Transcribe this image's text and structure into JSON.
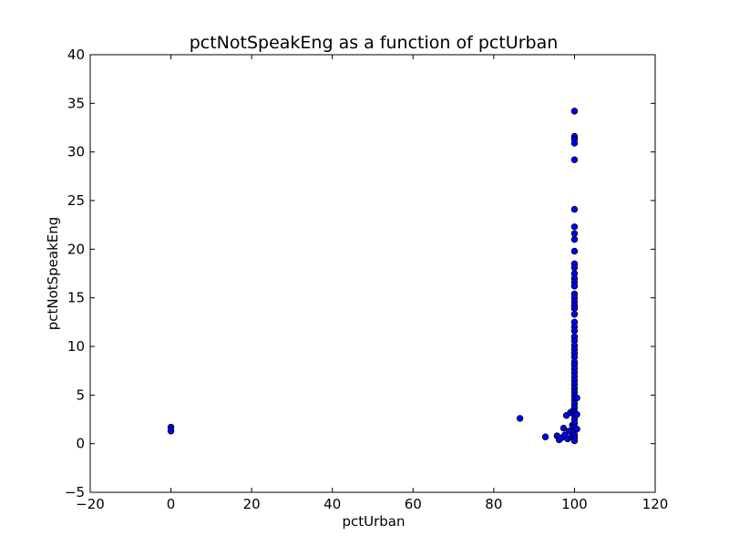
{
  "chart_data": {
    "type": "scatter",
    "title": "pctNotSpeakEng as a function of pctUrban",
    "xlabel": "pctUrban",
    "ylabel": "pctNotSpeakEng",
    "xlim": [
      -20,
      120
    ],
    "ylim": [
      -5,
      40
    ],
    "xticks": [
      -20,
      0,
      20,
      40,
      60,
      80,
      100,
      120
    ],
    "yticks": [
      -5,
      0,
      5,
      10,
      15,
      20,
      25,
      30,
      35,
      40
    ],
    "xtick_labels": [
      "−20",
      "0",
      "20",
      "40",
      "60",
      "80",
      "100",
      "120"
    ],
    "ytick_labels": [
      "−5",
      "0",
      "5",
      "10",
      "15",
      "20",
      "25",
      "30",
      "35",
      "40"
    ],
    "grid": false,
    "marker_color": "#0000ff",
    "marker_edge": "#000000",
    "series": [
      {
        "points": [
          [
            0,
            1.7
          ],
          [
            0,
            1.3
          ],
          [
            86.5,
            2.6
          ],
          [
            92.8,
            0.7
          ],
          [
            95.7,
            0.8
          ],
          [
            96.2,
            0.4
          ],
          [
            96.8,
            0.6
          ],
          [
            97.3,
            1.6
          ],
          [
            97.6,
            0.9
          ],
          [
            98.0,
            2.9
          ],
          [
            98.3,
            0.5
          ],
          [
            98.7,
            1.3
          ],
          [
            99.0,
            3.2
          ],
          [
            99.3,
            0.7
          ],
          [
            99.5,
            1.9
          ],
          [
            99.7,
            3.4
          ],
          [
            100,
            34.2
          ],
          [
            100,
            31.6
          ],
          [
            100,
            31.3
          ],
          [
            100,
            30.9
          ],
          [
            100,
            29.2
          ],
          [
            100,
            24.1
          ],
          [
            100,
            22.3
          ],
          [
            100,
            21.6
          ],
          [
            100,
            21.0
          ],
          [
            100,
            19.8
          ],
          [
            100,
            18.5
          ],
          [
            100,
            18.1
          ],
          [
            100,
            17.5
          ],
          [
            100,
            17.0
          ],
          [
            100,
            16.6
          ],
          [
            100,
            16.2
          ],
          [
            100,
            15.4
          ],
          [
            100,
            15.0
          ],
          [
            100,
            14.6
          ],
          [
            100,
            14.2
          ],
          [
            100,
            13.9
          ],
          [
            100,
            13.3
          ],
          [
            100,
            12.5
          ],
          [
            100,
            12.0
          ],
          [
            100,
            11.6
          ],
          [
            100,
            11.0
          ],
          [
            100,
            10.6
          ],
          [
            100,
            10.1
          ],
          [
            100,
            9.7
          ],
          [
            100,
            9.3
          ],
          [
            100,
            8.9
          ],
          [
            100,
            8.4
          ],
          [
            100,
            8.1
          ],
          [
            100,
            7.7
          ],
          [
            100,
            7.3
          ],
          [
            100,
            6.9
          ],
          [
            100,
            6.5
          ],
          [
            100,
            6.1
          ],
          [
            100,
            5.7
          ],
          [
            100,
            5.3
          ],
          [
            100,
            4.9
          ],
          [
            100,
            4.5
          ],
          [
            100,
            4.1
          ],
          [
            100,
            3.7
          ],
          [
            100,
            3.3
          ],
          [
            100,
            2.9
          ],
          [
            100,
            2.5
          ],
          [
            100,
            2.1
          ],
          [
            100,
            1.7
          ],
          [
            100,
            1.3
          ],
          [
            100,
            0.9
          ],
          [
            100,
            0.6
          ],
          [
            100,
            0.3
          ],
          [
            100.6,
            4.7
          ],
          [
            100.6,
            3.0
          ],
          [
            100.6,
            1.5
          ]
        ]
      }
    ]
  }
}
